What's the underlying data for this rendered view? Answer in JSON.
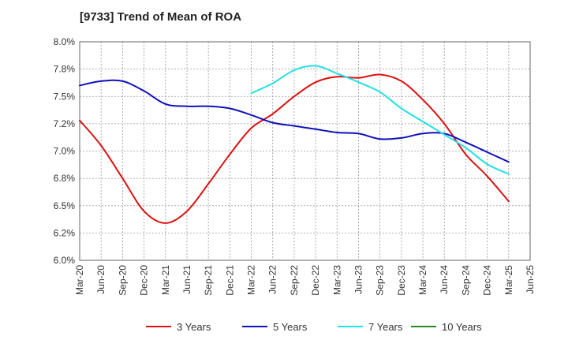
{
  "title": "[9733]  Trend of Mean of ROA",
  "colors": {
    "3 Years": "#dd1111",
    "5 Years": "#1010bb",
    "7 Years": "#22e0e6",
    "10 Years": "#228822",
    "grid": "#999999",
    "axis": "#666666"
  },
  "chart_data": {
    "type": "line",
    "title": "[9733]  Trend of Mean of ROA",
    "xlabel": "",
    "ylabel": "",
    "ylim": [
      6.0,
      8.0
    ],
    "yticks": [
      6.0,
      6.25,
      6.5,
      6.75,
      7.0,
      7.25,
      7.5,
      7.75,
      8.0
    ],
    "ytick_labels": [
      "6.0%",
      "6.2%",
      "6.5%",
      "6.8%",
      "7.0%",
      "7.2%",
      "7.5%",
      "7.8%",
      "8.0%"
    ],
    "categories": [
      "Mar-20",
      "Jun-20",
      "Sep-20",
      "Dec-20",
      "Mar-21",
      "Jun-21",
      "Sep-21",
      "Dec-21",
      "Mar-22",
      "Jun-22",
      "Sep-22",
      "Dec-22",
      "Mar-23",
      "Jun-23",
      "Sep-23",
      "Dec-23",
      "Mar-24",
      "Jun-24",
      "Sep-24",
      "Dec-24",
      "Mar-25",
      "Jun-25"
    ],
    "grid": true,
    "legend_position": "bottom",
    "series": [
      {
        "name": "3 Years",
        "values": [
          7.28,
          7.05,
          6.75,
          6.45,
          6.34,
          6.45,
          6.7,
          6.97,
          7.21,
          7.34,
          7.5,
          7.63,
          7.68,
          7.67,
          7.7,
          7.64,
          7.47,
          7.25,
          6.97,
          6.77,
          6.54,
          null
        ]
      },
      {
        "name": "5 Years",
        "values": [
          7.6,
          7.64,
          7.64,
          7.55,
          7.43,
          7.41,
          7.41,
          7.39,
          7.33,
          7.26,
          7.23,
          7.2,
          7.17,
          7.16,
          7.11,
          7.12,
          7.16,
          7.16,
          7.08,
          6.99,
          6.9,
          null
        ]
      },
      {
        "name": "7 Years",
        "values": [
          null,
          null,
          null,
          null,
          null,
          null,
          null,
          null,
          7.53,
          7.62,
          7.74,
          7.78,
          7.71,
          7.63,
          7.54,
          7.39,
          7.27,
          7.15,
          7.03,
          6.88,
          6.79,
          null
        ]
      },
      {
        "name": "10 Years",
        "values": [
          null,
          null,
          null,
          null,
          null,
          null,
          null,
          null,
          null,
          null,
          null,
          null,
          null,
          null,
          null,
          null,
          null,
          null,
          null,
          null,
          null,
          null
        ]
      }
    ]
  }
}
